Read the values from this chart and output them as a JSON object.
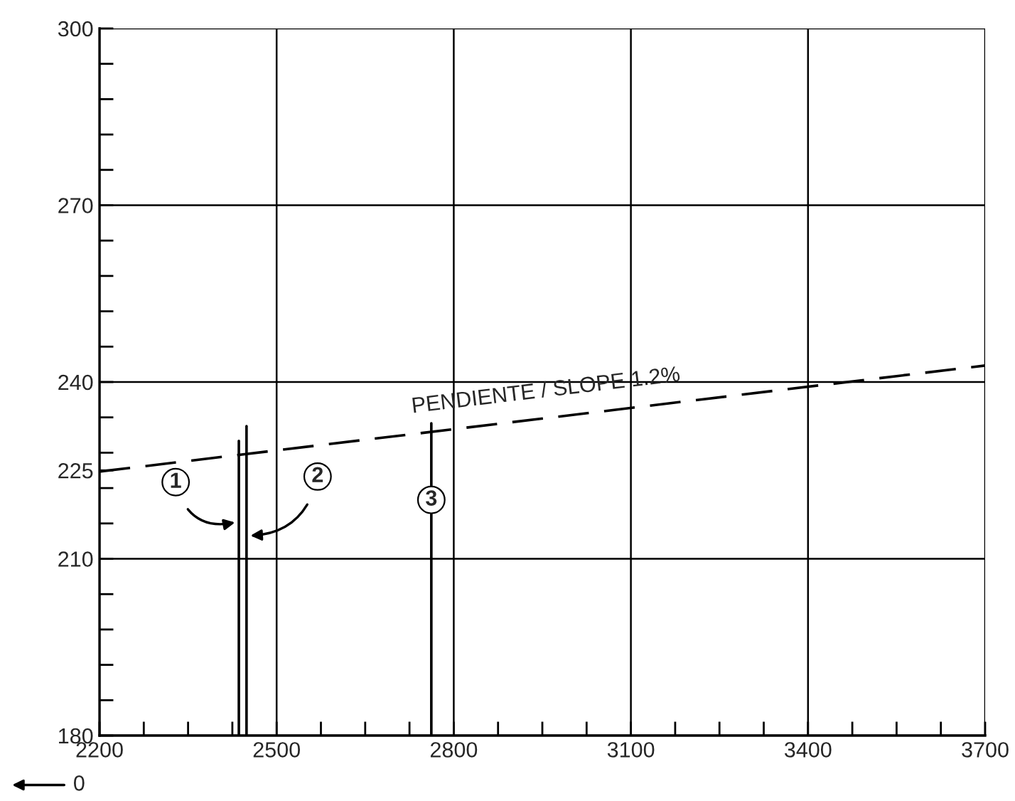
{
  "chart_data": {
    "type": "line",
    "xlim": [
      2200,
      3700
    ],
    "xticks": [
      2200,
      {
        "value": 2275,
        "label": null
      },
      {
        "value": 2350,
        "label": null
      },
      {
        "value": 2425,
        "label": null
      },
      2500,
      {
        "value": 2575,
        "label": null
      },
      {
        "value": 2650,
        "label": null
      },
      {
        "value": 2725,
        "label": null
      },
      2800,
      {
        "value": 2875,
        "label": null
      },
      {
        "value": 2950,
        "label": null
      },
      {
        "value": 3025,
        "label": null
      },
      3100,
      {
        "value": 3175,
        "label": null
      },
      {
        "value": 3250,
        "label": null
      },
      {
        "value": 3325,
        "label": null
      },
      3400,
      {
        "value": 3475,
        "label": null
      },
      {
        "value": 3550,
        "label": null
      },
      {
        "value": 3625,
        "label": null
      },
      3700
    ],
    "ylim": [
      180,
      300
    ],
    "yticks": [
      180,
      {
        "value": 186,
        "label": null
      },
      {
        "value": 192,
        "label": null
      },
      {
        "value": 198,
        "label": null
      },
      {
        "value": 204,
        "label": null
      },
      210,
      {
        "value": 216,
        "label": null
      },
      {
        "value": 222,
        "label": null
      },
      {
        "value": 225,
        "label": "225"
      },
      {
        "value": 228,
        "label": null
      },
      {
        "value": 234,
        "label": null
      },
      240,
      {
        "value": 246,
        "label": null
      },
      {
        "value": 252,
        "label": null
      },
      {
        "value": 258,
        "label": null
      },
      {
        "value": 264,
        "label": null
      },
      270,
      {
        "value": 276,
        "label": null
      },
      {
        "value": 282,
        "label": null
      },
      {
        "value": 288,
        "label": null
      },
      {
        "value": 294,
        "label": null
      },
      300
    ],
    "grid": true,
    "legend": false,
    "series": [
      {
        "color": "#000000",
        "line_style": "dashed",
        "x": [
          2200,
          3700
        ],
        "values": [
          224.8,
          242.8
        ]
      },
      {
        "color": "#000000",
        "line_style": "solid",
        "x": [
          2436,
          2436
        ],
        "values": [
          180,
          230
        ]
      },
      {
        "color": "#000000",
        "line_style": "solid",
        "x": [
          2449,
          2449
        ],
        "values": [
          180,
          232.5
        ]
      },
      {
        "color": "#000000",
        "line_style": "solid",
        "x": [
          2762,
          2762
        ],
        "values": [
          180,
          233
        ]
      }
    ],
    "annotations": [
      {
        "text": "1",
        "x": 2436,
        "y": 216.3
      },
      {
        "text": "2",
        "x": 2449,
        "y": 213.9
      },
      {
        "text": "3",
        "x": 2762,
        "y": 220
      },
      "PENDIENTE / SLOPE 1.2%",
      "0"
    ]
  }
}
